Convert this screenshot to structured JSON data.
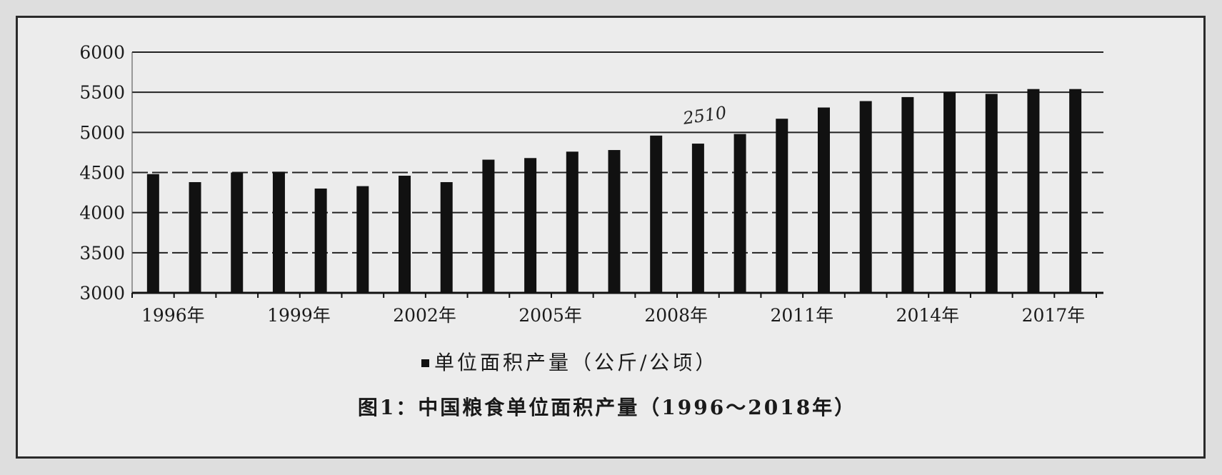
{
  "chart_data": {
    "type": "bar",
    "categories": [
      "1996年",
      "1997年",
      "1998年",
      "1999年",
      "2000年",
      "2001年",
      "2002年",
      "2003年",
      "2004年",
      "2005年",
      "2006年",
      "2007年",
      "2008年",
      "2009年",
      "2010年",
      "2011年",
      "2012年",
      "2013年",
      "2014年",
      "2015年",
      "2016年",
      "2017年",
      "2018年"
    ],
    "tick_labels_shown": [
      "1996年",
      "1999年",
      "2002年",
      "2005年",
      "2008年",
      "2011年",
      "2014年",
      "2017年"
    ],
    "series": [
      {
        "name": "单位面积产量（公斤/公顷）",
        "values": [
          4480,
          4380,
          4500,
          4510,
          4300,
          4330,
          4460,
          4380,
          4660,
          4680,
          4760,
          4780,
          4960,
          4860,
          4980,
          5170,
          5310,
          5390,
          5440,
          5500,
          5480,
          5540,
          5540
        ],
        "color": "#111111"
      }
    ],
    "ylim": [
      3000,
      6000
    ],
    "yticks": [
      3000,
      3500,
      4000,
      4500,
      5000,
      5500,
      6000
    ],
    "grid": true,
    "legend": "bottom-center",
    "caption": "图1：中国粮食单位面积产量（1996～2018年）",
    "annotation": {
      "text": "2510",
      "category": "2009年"
    }
  }
}
